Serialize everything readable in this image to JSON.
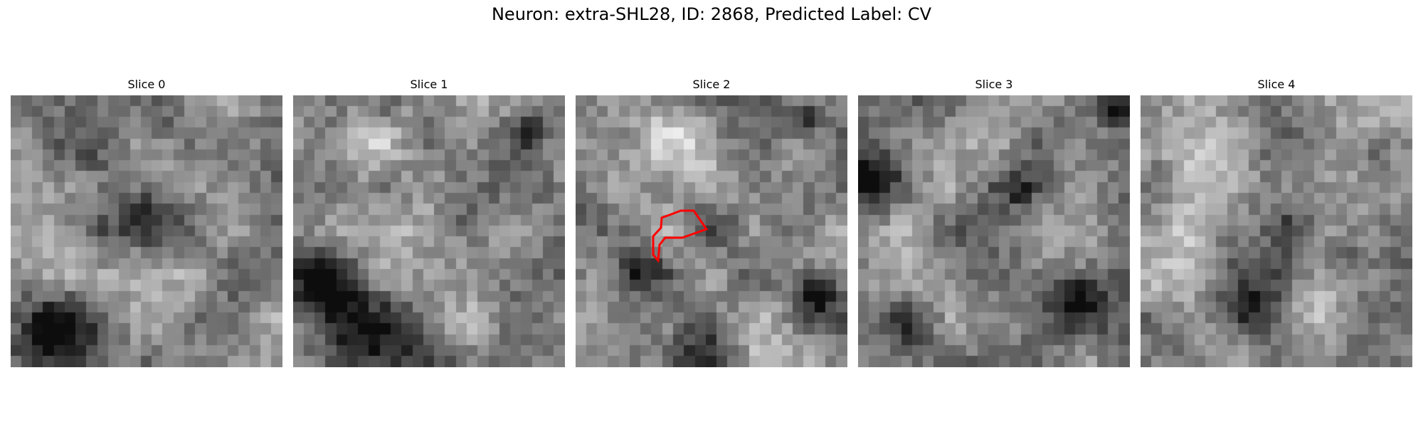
{
  "figure": {
    "title": "Neuron: extra-SHL28, ID: 2868, Predicted Label: CV"
  },
  "panels": [
    {
      "title": "Slice 0",
      "tile_name": "slice-0-image",
      "seed": 11,
      "blobs": [
        [
          0.5,
          0.45,
          0.1,
          -0.35
        ],
        [
          0.15,
          0.92,
          0.18,
          -0.55
        ],
        [
          0.55,
          0.1,
          0.08,
          -0.15
        ],
        [
          0.8,
          0.5,
          0.08,
          0.1
        ],
        [
          0.3,
          0.2,
          0.1,
          -0.1
        ]
      ]
    },
    {
      "title": "Slice 1",
      "tile_name": "slice-1-image",
      "seed": 23,
      "blobs": [
        [
          0.12,
          0.7,
          0.14,
          -0.5
        ],
        [
          0.3,
          0.95,
          0.18,
          -0.5
        ],
        [
          0.88,
          0.12,
          0.07,
          -0.35
        ],
        [
          0.35,
          0.05,
          0.05,
          -0.25
        ],
        [
          0.6,
          0.45,
          0.08,
          -0.12
        ],
        [
          0.25,
          0.22,
          0.12,
          0.2
        ]
      ]
    },
    {
      "title": "Slice 2",
      "tile_name": "slice-2-image",
      "seed": 37,
      "blobs": [
        [
          0.22,
          0.65,
          0.09,
          -0.5
        ],
        [
          0.88,
          0.73,
          0.08,
          -0.6
        ],
        [
          0.5,
          0.48,
          0.1,
          -0.25
        ],
        [
          0.85,
          0.1,
          0.05,
          -0.45
        ],
        [
          0.35,
          0.15,
          0.14,
          0.25
        ],
        [
          0.45,
          0.95,
          0.12,
          -0.25
        ],
        [
          0.05,
          0.4,
          0.08,
          -0.15
        ]
      ]
    },
    {
      "title": "Slice 3",
      "tile_name": "slice-3-image",
      "seed": 53,
      "blobs": [
        [
          0.05,
          0.3,
          0.1,
          -0.4
        ],
        [
          0.8,
          0.75,
          0.1,
          -0.45
        ],
        [
          0.95,
          0.05,
          0.05,
          -0.5
        ],
        [
          0.5,
          0.5,
          0.15,
          -0.05
        ],
        [
          0.2,
          0.85,
          0.08,
          -0.25
        ],
        [
          0.6,
          0.35,
          0.06,
          -0.3
        ]
      ]
    },
    {
      "title": "Slice 4",
      "tile_name": "slice-4-image",
      "seed": 71,
      "blobs": [
        [
          0.42,
          0.8,
          0.1,
          -0.45
        ],
        [
          0.85,
          0.2,
          0.08,
          -0.25
        ],
        [
          0.55,
          0.5,
          0.08,
          -0.3
        ],
        [
          0.25,
          0.25,
          0.15,
          0.2
        ],
        [
          0.1,
          0.3,
          0.06,
          -0.15
        ],
        [
          0.75,
          0.6,
          0.08,
          -0.2
        ]
      ]
    }
  ],
  "outline_color": "#ff0000"
}
